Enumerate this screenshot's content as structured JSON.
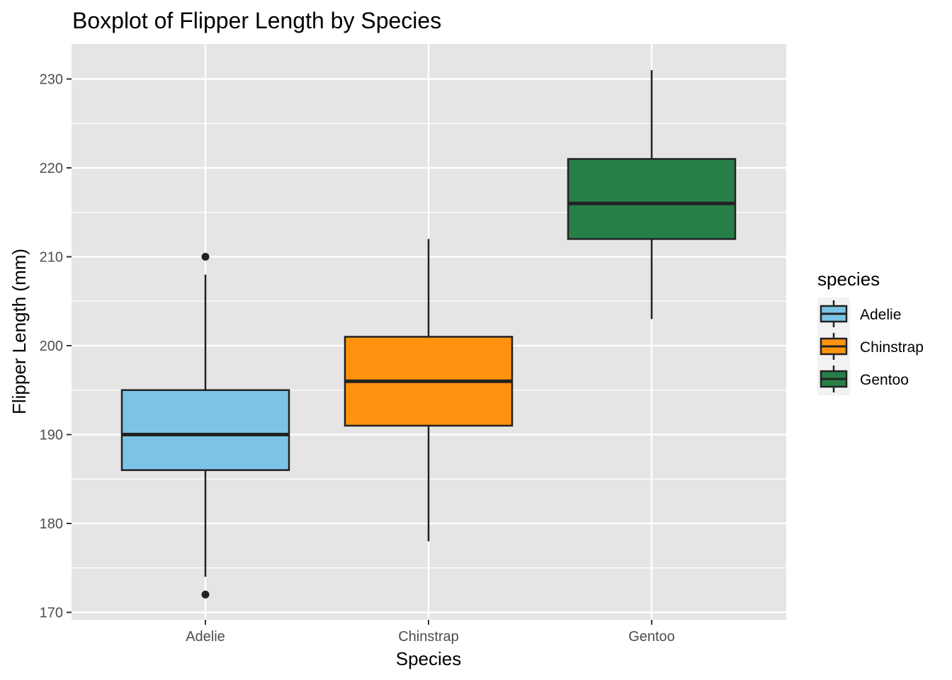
{
  "chart_data": {
    "type": "boxplot",
    "title": "Boxplot of Flipper Length by Species",
    "xlabel": "Species",
    "ylabel": "Flipper Length (mm)",
    "ylim": [
      169,
      234
    ],
    "yticks": [
      170,
      180,
      190,
      200,
      210,
      220,
      230
    ],
    "categories": [
      "Adelie",
      "Chinstrap",
      "Gentoo"
    ],
    "grid": true,
    "legend": {
      "title": "species",
      "position": "right",
      "entries": [
        "Adelie",
        "Chinstrap",
        "Gentoo"
      ]
    },
    "series": [
      {
        "category": "Adelie",
        "color": "#7BC4E7",
        "whisker_low": 174,
        "q1": 186,
        "median": 190,
        "q3": 195,
        "whisker_high": 208,
        "outliers": [
          210,
          172
        ]
      },
      {
        "category": "Chinstrap",
        "color": "#FF9310",
        "whisker_low": 178,
        "q1": 191,
        "median": 196,
        "q3": 201,
        "whisker_high": 212,
        "outliers": []
      },
      {
        "category": "Gentoo",
        "color": "#277F48",
        "whisker_low": 203,
        "q1": 212,
        "median": 216,
        "q3": 221,
        "whisker_high": 231,
        "outliers": []
      }
    ],
    "panel_background": "#E5E5E5",
    "grid_color": "#FFFFFF",
    "outline_color": "#222222"
  }
}
